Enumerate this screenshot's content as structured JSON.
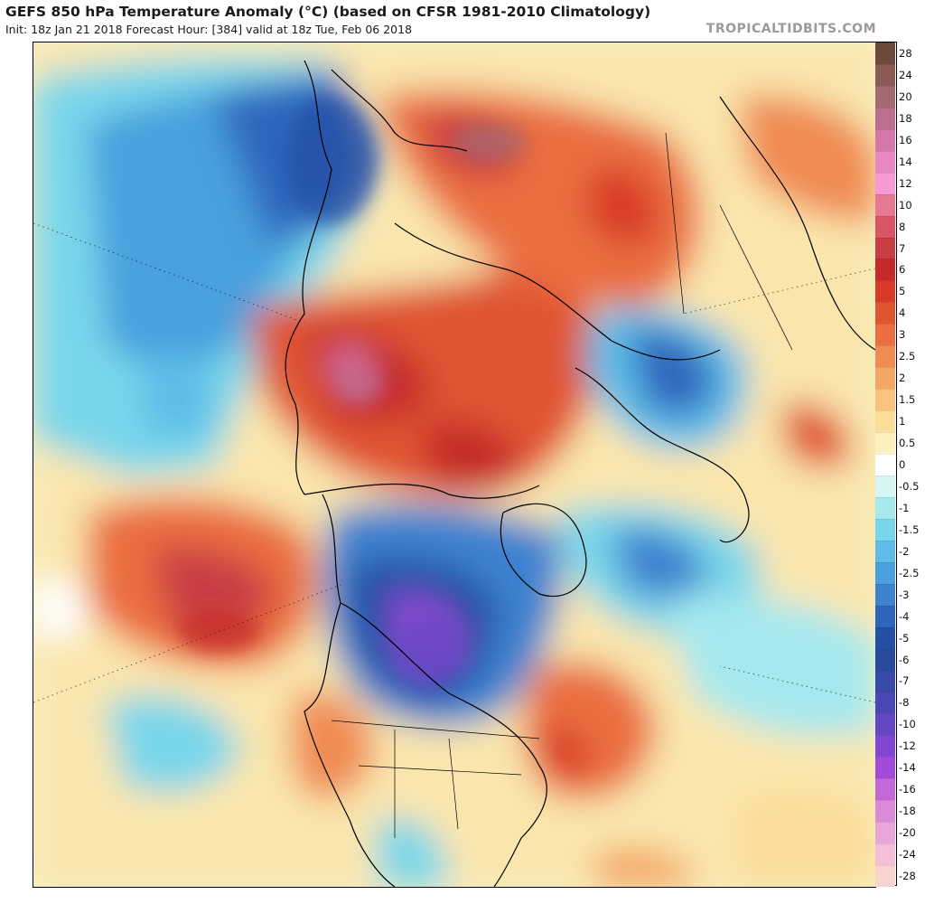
{
  "header": {
    "title": "GEFS 850 hPa Temperature Anomaly (°C) (based on CFSR 1981-2010 Climatology)",
    "subtitle": "Init: 18z Jan 21 2018   Forecast Hour: [384]   valid at 18z Tue, Feb 06 2018",
    "brand": "TROPICALTIDBITS.COM"
  },
  "colorbar": {
    "levels": [
      {
        "label": "28",
        "color": "#6b4a3c"
      },
      {
        "label": "24",
        "color": "#8a5a55"
      },
      {
        "label": "20",
        "color": "#a46a72"
      },
      {
        "label": "18",
        "color": "#bd6d8e"
      },
      {
        "label": "16",
        "color": "#d478a8"
      },
      {
        "label": "14",
        "color": "#e689c2"
      },
      {
        "label": "12",
        "color": "#f39bd2"
      },
      {
        "label": "10",
        "color": "#e77891"
      },
      {
        "label": "8",
        "color": "#d95566"
      },
      {
        "label": "7",
        "color": "#c93d45"
      },
      {
        "label": "6",
        "color": "#c42a2c"
      },
      {
        "label": "5",
        "color": "#d83a27"
      },
      {
        "label": "4",
        "color": "#e05530"
      },
      {
        "label": "3",
        "color": "#ea6e3f"
      },
      {
        "label": "2.5",
        "color": "#f08b52"
      },
      {
        "label": "2",
        "color": "#f4a664"
      },
      {
        "label": "1.5",
        "color": "#f8c37c"
      },
      {
        "label": "1",
        "color": "#fbdc98"
      },
      {
        "label": "0.5",
        "color": "#fdf0bf"
      },
      {
        "label": "0",
        "color": "#ffffff"
      },
      {
        "label": "-0.5",
        "color": "#d6f5f5"
      },
      {
        "label": "-1",
        "color": "#a5e8ee"
      },
      {
        "label": "-1.5",
        "color": "#79d6ea"
      },
      {
        "label": "-2",
        "color": "#5dbde8"
      },
      {
        "label": "-2.5",
        "color": "#4aa0dd"
      },
      {
        "label": "-3",
        "color": "#3c82cf"
      },
      {
        "label": "-4",
        "color": "#2f66bd"
      },
      {
        "label": "-5",
        "color": "#244fa4"
      },
      {
        "label": "-6",
        "color": "#2a4a9c"
      },
      {
        "label": "-7",
        "color": "#3a4aa8"
      },
      {
        "label": "-8",
        "color": "#4a48b4"
      },
      {
        "label": "-10",
        "color": "#6547c4"
      },
      {
        "label": "-12",
        "color": "#8346d2"
      },
      {
        "label": "-14",
        "color": "#a24bd9"
      },
      {
        "label": "-16",
        "color": "#c468d8"
      },
      {
        "label": "-18",
        "color": "#dc8ad8"
      },
      {
        "label": "-20",
        "color": "#eaa6da"
      },
      {
        "label": "-24",
        "color": "#f4bdd8"
      },
      {
        "label": "-28",
        "color": "#f9d3d0"
      }
    ]
  }
}
